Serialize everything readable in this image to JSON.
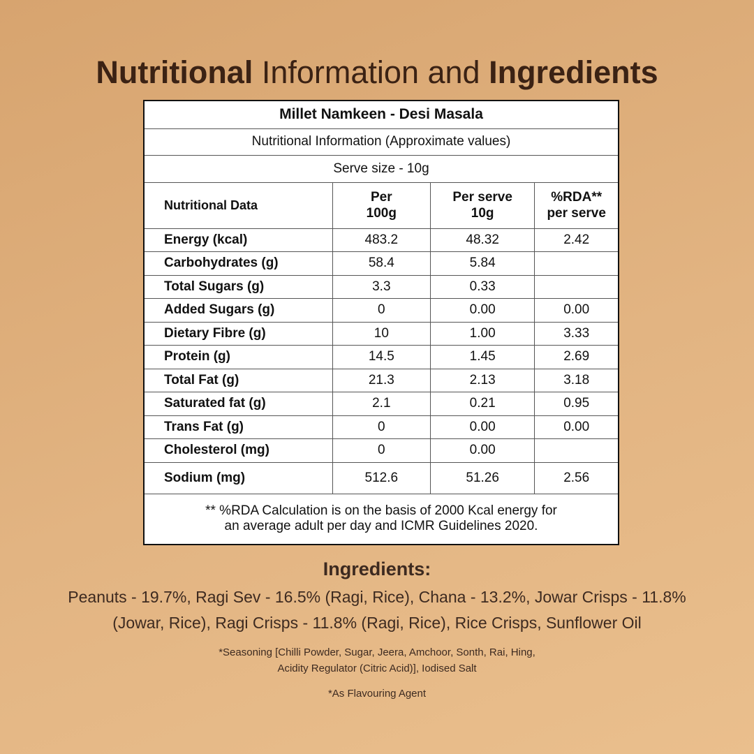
{
  "header": {
    "title_bold_1": "Nutritional",
    "title_regular": "Information and",
    "title_bold_2": "Ingredients"
  },
  "table": {
    "product": "Millet Namkeen - Desi Masala",
    "subtitle": "Nutritional Information (Approximate values)",
    "serve_size": "Serve size - 10g",
    "columns": [
      "Nutritional Data",
      "Per\n100g",
      "Per serve\n10g",
      "%RDA**\nper serve"
    ],
    "rows": [
      [
        "Energy (kcal)",
        "483.2",
        "48.32",
        "2.42"
      ],
      [
        "Carbohydrates (g)",
        "58.4",
        "5.84",
        null
      ],
      [
        "Total Sugars (g)",
        "3.3",
        "0.33",
        null
      ],
      [
        "Added Sugars (g)",
        "0",
        "0.00",
        "0.00"
      ],
      [
        "Dietary Fibre (g)",
        "10",
        "1.00",
        "3.33"
      ],
      [
        "Protein (g)",
        "14.5",
        "1.45",
        "2.69"
      ],
      [
        "Total Fat (g)",
        "21.3",
        "2.13",
        "3.18"
      ],
      [
        "Saturated fat (g)",
        "2.1",
        "0.21",
        "0.95"
      ],
      [
        "Trans Fat (g)",
        "0",
        "0.00",
        "0.00"
      ],
      [
        "Cholesterol (mg)",
        "0",
        "0.00",
        null
      ],
      [
        "Sodium (mg)",
        "512.6",
        "51.26",
        "2.56"
      ]
    ],
    "footnote": [
      "** %RDA Calculation is on the basis of 2000 Kcal energy for",
      "an average adult per day and ICMR Guidelines 2020."
    ]
  },
  "ingredients": {
    "heading": "Ingredients:",
    "lines": [
      "Peanuts - 19.7%, Ragi Sev - 16.5% (Ragi, Rice), Chana - 13.2%, Jowar Crisps - 11.8%",
      "(Jowar, Rice), Ragi Crisps - 11.8% (Ragi, Rice), Rice Crisps, Sunflower Oil"
    ],
    "seasoning": [
      "*Seasoning [Chilli Powder, Sugar, Jeera, Amchoor, Sonth, Rai, Hing,",
      "Acidity Regulator (Citric Acid)], Iodised Salt"
    ],
    "note": "*As Flavouring Agent"
  }
}
